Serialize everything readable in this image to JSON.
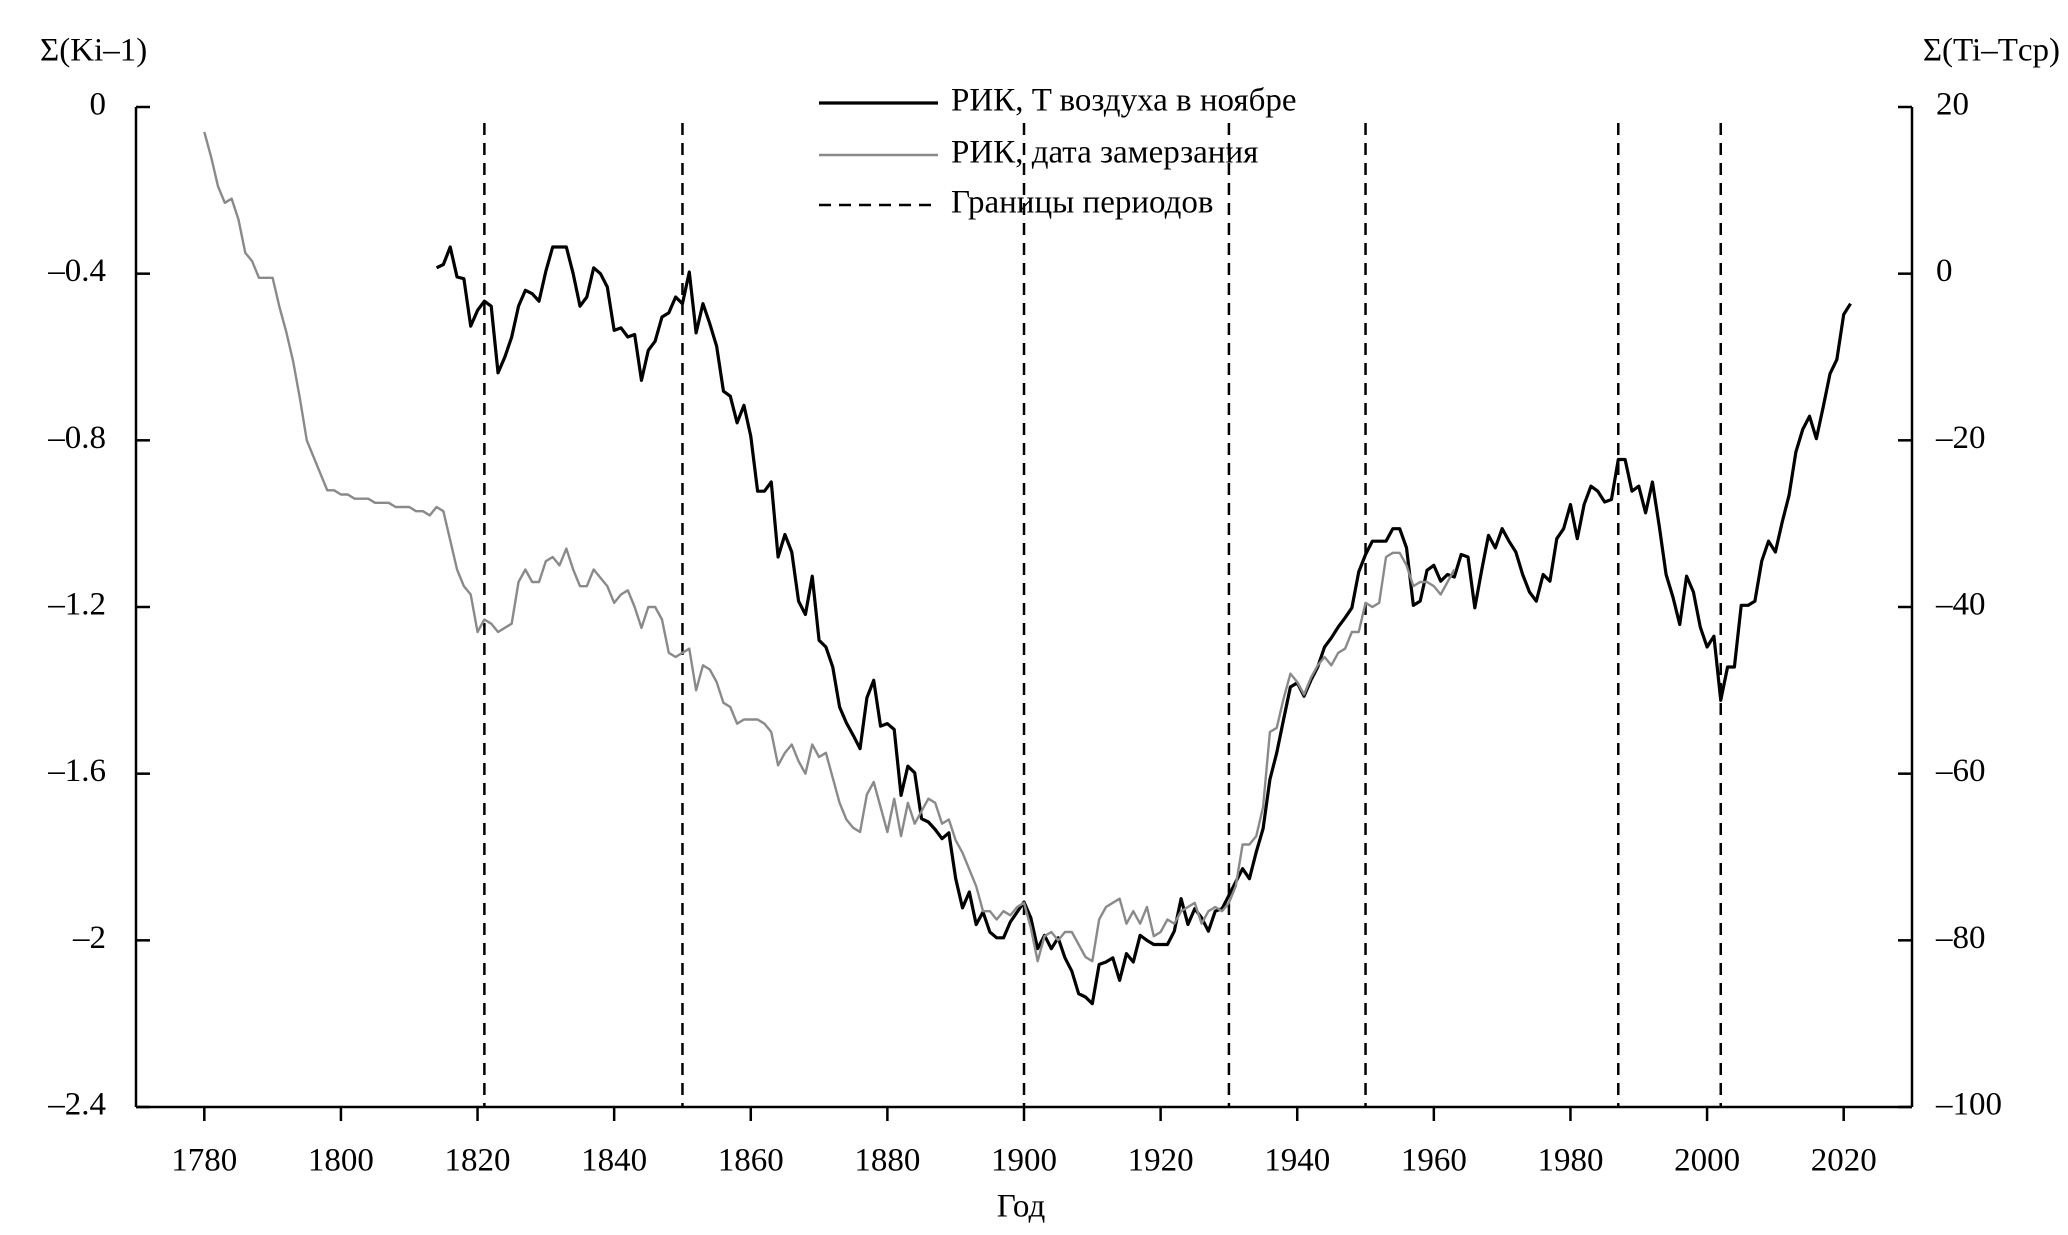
{
  "chart_data": {
    "type": "line",
    "x_label": "Год",
    "y_label": "Σ(Ki–1)",
    "y2_label": "Σ(Ti–Tср)",
    "xlim": [
      1770,
      2030
    ],
    "xticks": [
      1780,
      1800,
      1820,
      1840,
      1860,
      1880,
      1900,
      1920,
      1940,
      1960,
      1980,
      2000,
      2020
    ],
    "ylim": [
      -2.4,
      0
    ],
    "yticks": [
      0,
      {
        "value": -0.4,
        "label": "–0.4"
      },
      {
        "value": -0.8,
        "label": "–0.8"
      },
      {
        "value": -1.2,
        "label": "–1.2"
      },
      {
        "value": -1.6,
        "label": "–1.6"
      },
      {
        "value": -2,
        "label": "–2"
      },
      {
        "value": -2.4,
        "label": "–2.4"
      }
    ],
    "y2lim": [
      -100,
      20
    ],
    "y2ticks": [
      20,
      0,
      {
        "value": -20,
        "label": "–20"
      },
      {
        "value": -40,
        "label": "–40"
      },
      {
        "value": -60,
        "label": "–60"
      },
      {
        "value": -80,
        "label": "–80"
      },
      {
        "value": -100,
        "label": "–100"
      }
    ],
    "x": [
      1780,
      1781,
      1782,
      1783,
      1784,
      1785,
      1786,
      1787,
      1788,
      1789,
      1790,
      1791,
      1792,
      1793,
      1794,
      1795,
      1796,
      1797,
      1798,
      1799,
      1800,
      1801,
      1802,
      1803,
      1804,
      1805,
      1806,
      1807,
      1808,
      1809,
      1810,
      1811,
      1812,
      1813,
      1814,
      1815,
      1816,
      1817,
      1818,
      1819,
      1820,
      1821,
      1822,
      1823,
      1824,
      1825,
      1826,
      1827,
      1828,
      1829,
      1830,
      1831,
      1832,
      1833,
      1834,
      1835,
      1836,
      1837,
      1838,
      1839,
      1840,
      1841,
      1842,
      1843,
      1844,
      1845,
      1846,
      1847,
      1848,
      1849,
      1850,
      1851,
      1852,
      1853,
      1854,
      1855,
      1856,
      1857,
      1858,
      1859,
      1860,
      1861,
      1862,
      1863,
      1864,
      1865,
      1866,
      1867,
      1868,
      1869,
      1870,
      1871,
      1872,
      1873,
      1874,
      1875,
      1876,
      1877,
      1878,
      1879,
      1880,
      1881,
      1882,
      1883,
      1884,
      1885,
      1886,
      1887,
      1888,
      1889,
      1890,
      1891,
      1892,
      1893,
      1894,
      1895,
      1896,
      1897,
      1898,
      1899,
      1900,
      1901,
      1902,
      1903,
      1904,
      1905,
      1906,
      1907,
      1908,
      1909,
      1910,
      1911,
      1912,
      1913,
      1914,
      1915,
      1916,
      1917,
      1918,
      1919,
      1920,
      1921,
      1922,
      1923,
      1924,
      1925,
      1926,
      1927,
      1928,
      1929,
      1930,
      1931,
      1932,
      1933,
      1934,
      1935,
      1936,
      1937,
      1938,
      1939,
      1940,
      1941,
      1942,
      1943,
      1944,
      1945,
      1946,
      1947,
      1948,
      1949,
      1950,
      1951,
      1952,
      1953,
      1954,
      1955,
      1956,
      1957,
      1958,
      1959,
      1960,
      1961,
      1962,
      1963,
      1964,
      1965,
      1966,
      1967,
      1968,
      1969,
      1970,
      1971,
      1972,
      1973,
      1974,
      1975,
      1976,
      1977,
      1978,
      1979,
      1980,
      1981,
      1982,
      1983,
      1984,
      1985,
      1986,
      1987,
      1988,
      1989,
      1990,
      1991,
      1992,
      1993,
      1994,
      1995,
      1996,
      1997,
      1998,
      1999,
      2000,
      2001,
      2002,
      2003,
      2004,
      2005,
      2006,
      2007,
      2008,
      2009,
      2010,
      2011,
      2012,
      2013,
      2014,
      2015,
      2016,
      2017,
      2018,
      2019,
      2020,
      2021
    ],
    "series": [
      {
        "name": "РИК, T воздуха в ноябре",
        "color": "#000000",
        "axis": "y2",
        "values": [
          null,
          null,
          null,
          null,
          null,
          null,
          null,
          null,
          null,
          null,
          null,
          null,
          null,
          null,
          null,
          null,
          null,
          null,
          null,
          null,
          null,
          null,
          null,
          null,
          null,
          null,
          null,
          null,
          null,
          null,
          null,
          null,
          null,
          null,
          0.7,
          1.1,
          3.2,
          -0.4,
          -0.6,
          -6.3,
          -4.4,
          -3.3,
          -3.9,
          -11.9,
          -10,
          -7.6,
          -3.9,
          -2,
          -2.4,
          -3.3,
          0.3,
          3.2,
          3.2,
          3.2,
          0,
          -3.9,
          -2.8,
          0.7,
          0,
          -1.6,
          -6.8,
          -6.5,
          -7.6,
          -7.3,
          -12.8,
          -9.2,
          -8.1,
          -5.2,
          -4.7,
          -2.8,
          -3.6,
          0.2,
          -7.1,
          -3.6,
          -6,
          -8.7,
          -14.1,
          -14.7,
          -17.9,
          -15.8,
          -19.5,
          -26.1,
          -26.1,
          -25,
          -34,
          -31.3,
          -33.4,
          -39.3,
          -40.9,
          -36.3,
          -44,
          -44.8,
          -47.2,
          -52,
          -53.9,
          -55.4,
          -57,
          -50.9,
          -48.8,
          -54.3,
          -54,
          -54.7,
          -62.6,
          -59.1,
          -59.9,
          -65.4,
          -65.8,
          -66.7,
          -67.8,
          -67.1,
          -72.6,
          -76.1,
          -74.2,
          -78.1,
          -76.6,
          -79,
          -79.7,
          -79.7,
          -77.8,
          -76.6,
          -75.4,
          -77.3,
          -81,
          -79.4,
          -81,
          -79.7,
          -82.1,
          -83.7,
          -86.4,
          -86.8,
          -87.6,
          -82.9,
          -82.6,
          -82.1,
          -84.8,
          -81.6,
          -82.6,
          -79.4,
          -80,
          -80.5,
          -80.5,
          -80.5,
          -78.9,
          -75,
          -78.1,
          -76.2,
          -77.3,
          -78.9,
          -76.5,
          -76.2,
          -74.6,
          -73,
          -71.4,
          -72.6,
          -69.4,
          -66.6,
          -60.7,
          -57.5,
          -53.5,
          -49.6,
          -49.1,
          -50.7,
          -48.8,
          -47.2,
          -44.8,
          -43.7,
          -42.4,
          -41.3,
          -40.1,
          -35.8,
          -33.7,
          -32.1,
          -32.1,
          -32.1,
          -30.6,
          -30.6,
          -32.9,
          -39.8,
          -39.3,
          -35.6,
          -35,
          -36.9,
          -36.1,
          -36.4,
          -33.7,
          -34,
          -40.1,
          -35.6,
          -31.4,
          -32.9,
          -30.6,
          -32.1,
          -33.4,
          -36.1,
          -38.2,
          -39.3,
          -36.1,
          -36.9,
          -31.8,
          -30.6,
          -27.7,
          -31.8,
          -27.7,
          -25.5,
          -26.1,
          -27.4,
          -27.1,
          -22.3,
          -22.3,
          -26.1,
          -25.5,
          -28.7,
          -25,
          -30.3,
          -36.1,
          -38.8,
          -42.1,
          -36.3,
          -38.2,
          -42.4,
          -44.8,
          -43.5,
          -51.2,
          -47.2,
          -47.2,
          -39.8,
          -39.8,
          -39.3,
          -34.5,
          -32.1,
          -33.4,
          -29.8,
          -26.6,
          -21.4,
          -18.7,
          -17.1,
          -19.8,
          -16,
          -12,
          -10.3,
          -4.9,
          -3.6
        ]
      },
      {
        "name": "РИК, дата замерзания",
        "color": "#8a8a8a",
        "values": [
          -0.06,
          -0.12,
          -0.19,
          -0.23,
          -0.22,
          -0.27,
          -0.35,
          -0.37,
          -0.41,
          -0.41,
          -0.41,
          -0.48,
          -0.54,
          -0.61,
          -0.7,
          -0.8,
          -0.84,
          -0.88,
          -0.92,
          -0.92,
          -0.93,
          -0.93,
          -0.94,
          -0.94,
          -0.94,
          -0.95,
          -0.95,
          -0.95,
          -0.96,
          -0.96,
          -0.96,
          -0.97,
          -0.97,
          -0.98,
          -0.96,
          -0.97,
          -1.04,
          -1.11,
          -1.15,
          -1.17,
          -1.26,
          -1.23,
          -1.24,
          -1.26,
          -1.25,
          -1.24,
          -1.14,
          -1.11,
          -1.14,
          -1.14,
          -1.09,
          -1.08,
          -1.1,
          -1.06,
          -1.11,
          -1.15,
          -1.15,
          -1.11,
          -1.13,
          -1.15,
          -1.19,
          -1.17,
          -1.16,
          -1.2,
          -1.25,
          -1.2,
          -1.2,
          -1.23,
          -1.31,
          -1.32,
          -1.31,
          -1.3,
          -1.4,
          -1.34,
          -1.35,
          -1.38,
          -1.43,
          -1.44,
          -1.48,
          -1.47,
          -1.47,
          -1.47,
          -1.48,
          -1.5,
          -1.58,
          -1.55,
          -1.53,
          -1.57,
          -1.6,
          -1.53,
          -1.56,
          -1.55,
          -1.61,
          -1.67,
          -1.71,
          -1.73,
          -1.74,
          -1.65,
          -1.62,
          -1.68,
          -1.74,
          -1.66,
          -1.75,
          -1.67,
          -1.72,
          -1.69,
          -1.66,
          -1.67,
          -1.72,
          -1.71,
          -1.76,
          -1.79,
          -1.83,
          -1.87,
          -1.93,
          -1.93,
          -1.95,
          -1.93,
          -1.94,
          -1.92,
          -1.91,
          -1.97,
          -2.05,
          -1.99,
          -1.98,
          -2,
          -1.98,
          -1.98,
          -2.01,
          -2.04,
          -2.05,
          -1.95,
          -1.92,
          -1.91,
          -1.9,
          -1.96,
          -1.93,
          -1.96,
          -1.92,
          -1.99,
          -1.98,
          -1.95,
          -1.96,
          -1.93,
          -1.92,
          -1.91,
          -1.96,
          -1.93,
          -1.92,
          -1.93,
          -1.91,
          -1.87,
          -1.77,
          -1.77,
          -1.75,
          -1.68,
          -1.5,
          -1.49,
          -1.42,
          -1.36,
          -1.38,
          -1.41,
          -1.37,
          -1.34,
          -1.32,
          -1.34,
          -1.31,
          -1.3,
          -1.26,
          -1.26,
          -1.19,
          -1.2,
          -1.19,
          -1.08,
          -1.07,
          -1.07,
          -1.1,
          -1.15,
          -1.14,
          -1.14,
          -1.15,
          -1.17,
          -1.14,
          -1.11,
          null,
          null,
          null,
          null,
          null,
          null,
          null,
          null,
          null,
          null,
          null,
          null,
          null,
          null,
          null,
          null,
          null,
          null,
          null,
          null,
          null,
          null,
          null,
          null,
          null,
          null,
          null,
          null,
          null,
          null,
          null,
          null,
          null,
          null,
          null,
          null,
          null,
          null,
          null,
          null,
          null,
          null,
          null,
          null,
          null,
          null,
          null,
          null,
          null,
          null,
          null,
          null,
          null,
          null,
          null,
          null,
          null,
          null
        ]
      }
    ],
    "boundaries": {
      "name": "Границы периодов",
      "color": "#000000",
      "x": [
        1821,
        1850,
        1900,
        1930,
        1950,
        1987,
        2002
      ]
    }
  }
}
